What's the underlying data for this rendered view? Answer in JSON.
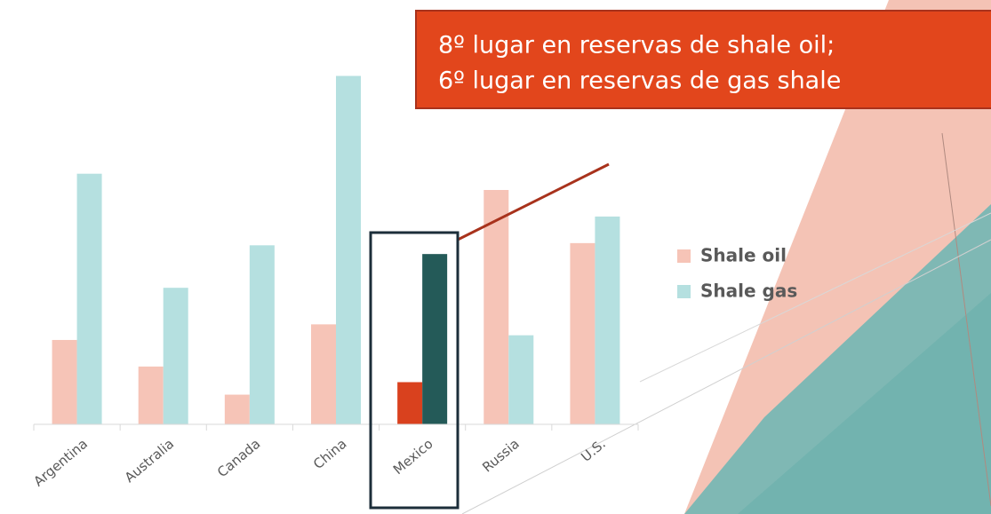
{
  "chart_data": {
    "type": "bar",
    "categories": [
      "Argentina",
      "Australia",
      "Canada",
      "China",
      "Mexico",
      "Russia",
      "U.S."
    ],
    "series": [
      {
        "name": "Shale oil",
        "color": "#f6c4b7",
        "highlight_color": "#d9411e",
        "values": [
          270,
          185,
          95,
          320,
          135,
          750,
          580
        ]
      },
      {
        "name": "Shale gas",
        "color": "#b5e0e0",
        "highlight_color": "#245a58",
        "values": [
          802,
          437,
          573,
          1115,
          545,
          285,
          665
        ]
      }
    ],
    "highlight": 4,
    "ylim": [
      0,
      1250
    ],
    "annotation": [
      "8º lugar en reservas de shale oil;",
      "6º lugar en reservas de gas shale"
    ],
    "legend": "right"
  }
}
